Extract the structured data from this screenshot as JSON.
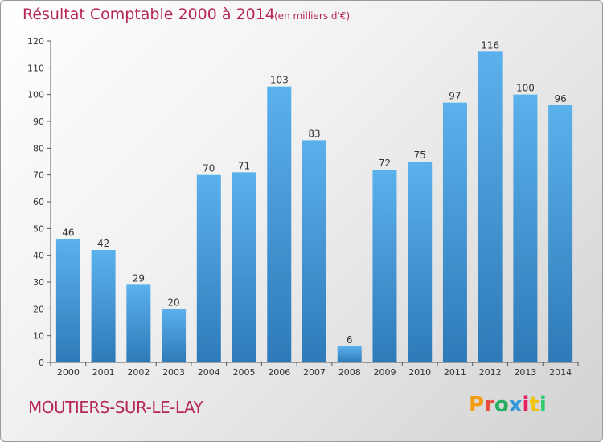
{
  "header": {
    "title": "Résultat Comptable 2000 à 2014",
    "unit": "(en milliers d'€)"
  },
  "footer": {
    "commune": "MOUTIERS-SUR-LE-LAY",
    "logo": "Proxiti"
  },
  "colors": {
    "title": "#b5275a",
    "bar_top": "#5bb1ec",
    "bar_bottom": "#2e7ab8",
    "logo_letters": [
      "#f39c12",
      "#e74c3c",
      "#27ae60",
      "#3498db",
      "#e91e63",
      "#f1c40f",
      "#2ecc71"
    ]
  },
  "chart_data": {
    "type": "bar",
    "title": "Résultat Comptable 2000 à 2014",
    "subtitle": "(en milliers d'€)",
    "categories": [
      "2000",
      "2001",
      "2002",
      "2003",
      "2004",
      "2005",
      "2006",
      "2007",
      "2008",
      "2009",
      "2010",
      "2011",
      "2012",
      "2013",
      "2014"
    ],
    "values": [
      46,
      42,
      29,
      20,
      70,
      71,
      103,
      83,
      6,
      72,
      75,
      97,
      116,
      100,
      96
    ],
    "ylim": [
      0,
      120
    ],
    "yticks": [
      0,
      10,
      20,
      30,
      40,
      50,
      60,
      70,
      80,
      90,
      100,
      110,
      120
    ],
    "grid": false,
    "xlabel": "",
    "ylabel": ""
  }
}
